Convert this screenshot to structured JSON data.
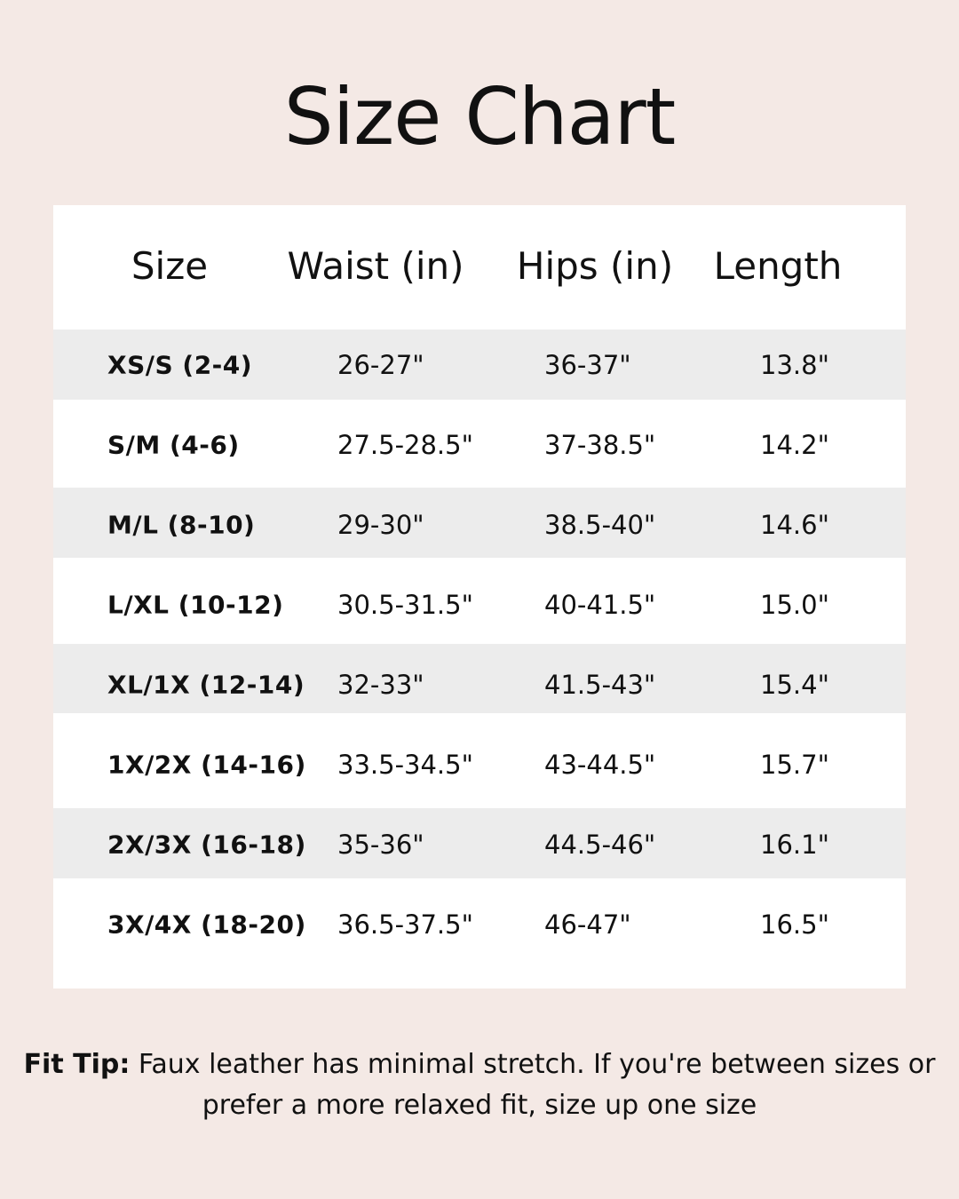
{
  "title": "Size Chart",
  "colors": {
    "background": "#f4e9e5",
    "table": "#ffffff",
    "stripe": "#ececec",
    "text": "#111111"
  },
  "table": {
    "headers": [
      "Size",
      "Waist (in)",
      "Hips (in)",
      "Length"
    ],
    "rows": [
      [
        "XS/S (2-4)",
        "26-27\"",
        "36-37\"",
        "13.8\""
      ],
      [
        "S/M (4-6)",
        "27.5-28.5\"",
        "37-38.5\"",
        "14.2\""
      ],
      [
        "M/L (8-10)",
        "29-30\"",
        "38.5-40\"",
        "14.6\""
      ],
      [
        "L/XL (10-12)",
        "30.5-31.5\"",
        "40-41.5\"",
        "15.0\""
      ],
      [
        "XL/1X (12-14)",
        "32-33\"",
        "41.5-43\"",
        "15.4\""
      ],
      [
        "1X/2X (14-16)",
        "33.5-34.5\"",
        "43-44.5\"",
        "15.7\""
      ],
      [
        "2X/3X (16-18)",
        "35-36\"",
        "44.5-46\"",
        "16.1\""
      ],
      [
        "3X/4X (18-20)",
        "36.5-37.5\"",
        "46-47\"",
        "16.5\""
      ]
    ]
  },
  "fit_tip": {
    "label": "Fit Tip:",
    "text": " Faux leather has minimal stretch. If you're between sizes or prefer a more relaxed fit, size up one size"
  }
}
